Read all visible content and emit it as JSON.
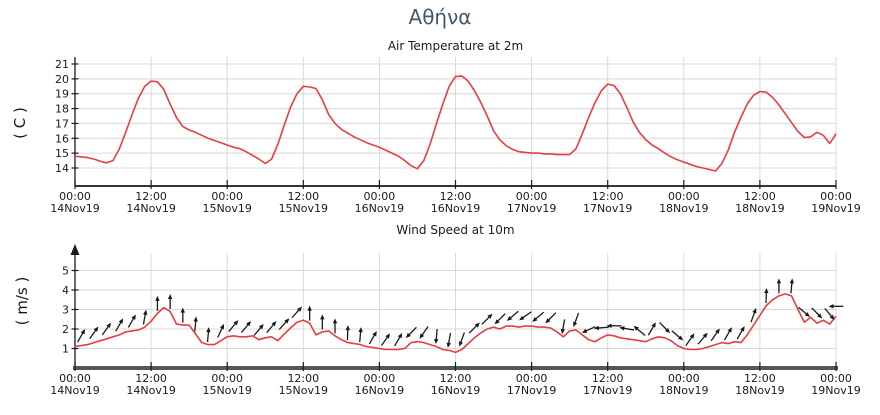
{
  "page": {
    "title": "Αθήνα",
    "title_color": "#46586a",
    "background": "#ffffff"
  },
  "chart_data": [
    {
      "type": "line",
      "title": "Air Temperature at 2m",
      "ylabel": "( C )",
      "xlabel": "",
      "line_color": "#e83e3e",
      "grid": true,
      "legend": "none",
      "ylim": [
        12.8,
        21.5
      ],
      "yticks": [
        14,
        15,
        16,
        17,
        18,
        19,
        20,
        21
      ],
      "x_start_hour": 0,
      "x_step_hours": 1,
      "x_ticks": [
        {
          "hour": 0,
          "time": "00:00",
          "date": "14Nov19"
        },
        {
          "hour": 12,
          "time": "12:00",
          "date": "14Nov19"
        },
        {
          "hour": 24,
          "time": "00:00",
          "date": "15Nov19"
        },
        {
          "hour": 36,
          "time": "12:00",
          "date": "15Nov19"
        },
        {
          "hour": 48,
          "time": "00:00",
          "date": "16Nov19"
        },
        {
          "hour": 60,
          "time": "12:00",
          "date": "16Nov19"
        },
        {
          "hour": 72,
          "time": "00:00",
          "date": "17Nov19"
        },
        {
          "hour": 84,
          "time": "12:00",
          "date": "17Nov19"
        },
        {
          "hour": 96,
          "time": "00:00",
          "date": "18Nov19"
        },
        {
          "hour": 108,
          "time": "12:00",
          "date": "18Nov19"
        },
        {
          "hour": 120,
          "time": "00:00",
          "date": "19Nov19"
        }
      ],
      "values": [
        14.8,
        14.75,
        14.7,
        14.6,
        14.45,
        14.35,
        14.5,
        15.3,
        16.4,
        17.6,
        18.7,
        19.5,
        19.85,
        19.8,
        19.3,
        18.3,
        17.4,
        16.8,
        16.55,
        16.4,
        16.2,
        16.0,
        15.85,
        15.7,
        15.55,
        15.4,
        15.3,
        15.1,
        14.85,
        14.6,
        14.3,
        14.6,
        15.6,
        16.9,
        18.1,
        19.0,
        19.5,
        19.45,
        19.35,
        18.6,
        17.6,
        17.0,
        16.6,
        16.35,
        16.1,
        15.9,
        15.7,
        15.55,
        15.4,
        15.2,
        15.0,
        14.8,
        14.5,
        14.15,
        13.95,
        14.5,
        15.6,
        17.0,
        18.3,
        19.5,
        20.15,
        20.2,
        19.85,
        19.2,
        18.4,
        17.5,
        16.5,
        15.9,
        15.5,
        15.25,
        15.1,
        15.05,
        15.0,
        15.0,
        14.95,
        14.95,
        14.9,
        14.9,
        14.9,
        15.3,
        16.3,
        17.4,
        18.4,
        19.2,
        19.65,
        19.55,
        19.0,
        18.1,
        17.1,
        16.4,
        15.9,
        15.55,
        15.3,
        15.0,
        14.75,
        14.55,
        14.4,
        14.25,
        14.1,
        14.0,
        13.9,
        13.8,
        14.3,
        15.2,
        16.4,
        17.4,
        18.3,
        18.9,
        19.15,
        19.1,
        18.75,
        18.25,
        17.65,
        17.05,
        16.45,
        16.05,
        16.1,
        16.4,
        16.2,
        15.65,
        16.3
      ]
    },
    {
      "type": "line",
      "title": "Wind Speed at 10m",
      "ylabel": "( m/s )",
      "xlabel": "",
      "line_color": "#e83e3e",
      "arrow_color": "#1a1a1a",
      "grid": true,
      "legend": "none",
      "ylim": [
        0,
        5.9
      ],
      "yticks": [
        1,
        2,
        3,
        4,
        5
      ],
      "x_start_hour": 0,
      "x_step_hours": 1,
      "x_ticks": [
        {
          "hour": 0,
          "time": "00:00",
          "date": "14Nov19"
        },
        {
          "hour": 12,
          "time": "12:00",
          "date": "14Nov19"
        },
        {
          "hour": 24,
          "time": "00:00",
          "date": "15Nov19"
        },
        {
          "hour": 36,
          "time": "12:00",
          "date": "15Nov19"
        },
        {
          "hour": 48,
          "time": "00:00",
          "date": "16Nov19"
        },
        {
          "hour": 60,
          "time": "12:00",
          "date": "16Nov19"
        },
        {
          "hour": 72,
          "time": "00:00",
          "date": "17Nov19"
        },
        {
          "hour": 84,
          "time": "12:00",
          "date": "17Nov19"
        },
        {
          "hour": 96,
          "time": "00:00",
          "date": "18Nov19"
        },
        {
          "hour": 108,
          "time": "12:00",
          "date": "18Nov19"
        },
        {
          "hour": 120,
          "time": "00:00",
          "date": "19Nov19"
        }
      ],
      "values": [
        1.1,
        1.15,
        1.2,
        1.3,
        1.4,
        1.5,
        1.6,
        1.7,
        1.85,
        1.9,
        1.95,
        2.1,
        2.4,
        2.8,
        3.1,
        2.9,
        2.25,
        2.2,
        2.2,
        1.75,
        1.3,
        1.2,
        1.2,
        1.4,
        1.6,
        1.65,
        1.6,
        1.6,
        1.65,
        1.45,
        1.55,
        1.6,
        1.4,
        1.75,
        2.05,
        2.35,
        2.45,
        2.3,
        1.7,
        1.85,
        1.9,
        1.65,
        1.45,
        1.3,
        1.25,
        1.2,
        1.1,
        1.05,
        1.0,
        0.95,
        0.95,
        0.95,
        1.0,
        1.3,
        1.35,
        1.3,
        1.2,
        1.1,
        0.95,
        0.9,
        0.8,
        0.95,
        1.25,
        1.55,
        1.8,
        2.0,
        2.1,
        2.0,
        2.15,
        2.15,
        2.1,
        2.15,
        2.15,
        2.1,
        2.1,
        2.05,
        1.85,
        1.6,
        1.9,
        1.95,
        1.7,
        1.45,
        1.35,
        1.55,
        1.7,
        1.65,
        1.55,
        1.5,
        1.45,
        1.4,
        1.35,
        1.5,
        1.6,
        1.55,
        1.4,
        1.15,
        1.0,
        0.95,
        0.95,
        1.0,
        1.1,
        1.2,
        1.3,
        1.25,
        1.35,
        1.3,
        1.7,
        2.2,
        2.7,
        3.2,
        3.5,
        3.7,
        3.8,
        3.7,
        3.0,
        2.35,
        2.6,
        2.3,
        2.45,
        2.25,
        2.65
      ],
      "wind_arrows": [
        {
          "hour": 1,
          "dir_deg": 60
        },
        {
          "hour": 3,
          "dir_deg": 55
        },
        {
          "hour": 5,
          "dir_deg": 55
        },
        {
          "hour": 7,
          "dir_deg": 60
        },
        {
          "hour": 9,
          "dir_deg": 60
        },
        {
          "hour": 11,
          "dir_deg": 80
        },
        {
          "hour": 13,
          "dir_deg": 90
        },
        {
          "hour": 15,
          "dir_deg": 90
        },
        {
          "hour": 17,
          "dir_deg": 90
        },
        {
          "hour": 19,
          "dir_deg": 85
        },
        {
          "hour": 21,
          "dir_deg": 85
        },
        {
          "hour": 23,
          "dir_deg": 65
        },
        {
          "hour": 25,
          "dir_deg": 50
        },
        {
          "hour": 27,
          "dir_deg": 50
        },
        {
          "hour": 29,
          "dir_deg": 50
        },
        {
          "hour": 31,
          "dir_deg": 50
        },
        {
          "hour": 33,
          "dir_deg": 48
        },
        {
          "hour": 35,
          "dir_deg": 48
        },
        {
          "hour": 37,
          "dir_deg": 90
        },
        {
          "hour": 39,
          "dir_deg": 90
        },
        {
          "hour": 41,
          "dir_deg": 90
        },
        {
          "hour": 43,
          "dir_deg": 88
        },
        {
          "hour": 45,
          "dir_deg": 85
        },
        {
          "hour": 47,
          "dir_deg": 60
        },
        {
          "hour": 49,
          "dir_deg": 55
        },
        {
          "hour": 51,
          "dir_deg": 60
        },
        {
          "hour": 53,
          "dir_deg": 225
        },
        {
          "hour": 55,
          "dir_deg": 235
        },
        {
          "hour": 57,
          "dir_deg": 265
        },
        {
          "hour": 59,
          "dir_deg": 260
        },
        {
          "hour": 61,
          "dir_deg": 250
        },
        {
          "hour": 63,
          "dir_deg": 45
        },
        {
          "hour": 65,
          "dir_deg": 45
        },
        {
          "hour": 67,
          "dir_deg": 225
        },
        {
          "hour": 69,
          "dir_deg": 220
        },
        {
          "hour": 71,
          "dir_deg": 215
        },
        {
          "hour": 73,
          "dir_deg": 220
        },
        {
          "hour": 75,
          "dir_deg": 225
        },
        {
          "hour": 77,
          "dir_deg": 260
        },
        {
          "hour": 79,
          "dir_deg": 250
        },
        {
          "hour": 81,
          "dir_deg": 205
        },
        {
          "hour": 83,
          "dir_deg": 185
        },
        {
          "hour": 85,
          "dir_deg": 180
        },
        {
          "hour": 87,
          "dir_deg": 170
        },
        {
          "hour": 89,
          "dir_deg": 140
        },
        {
          "hour": 91,
          "dir_deg": 60
        },
        {
          "hour": 93,
          "dir_deg": 315
        },
        {
          "hour": 95,
          "dir_deg": 320
        },
        {
          "hour": 97,
          "dir_deg": 55
        },
        {
          "hour": 99,
          "dir_deg": 50
        },
        {
          "hour": 101,
          "dir_deg": 55
        },
        {
          "hour": 103,
          "dir_deg": 60
        },
        {
          "hour": 105,
          "dir_deg": 60
        },
        {
          "hour": 107,
          "dir_deg": 70
        },
        {
          "hour": 109,
          "dir_deg": 88
        },
        {
          "hour": 111,
          "dir_deg": 90
        },
        {
          "hour": 113,
          "dir_deg": 85
        },
        {
          "hour": 115,
          "dir_deg": 320
        },
        {
          "hour": 117,
          "dir_deg": 315
        },
        {
          "hour": 119,
          "dir_deg": 310
        },
        {
          "hour": 120,
          "dir_deg": 180
        }
      ]
    }
  ]
}
